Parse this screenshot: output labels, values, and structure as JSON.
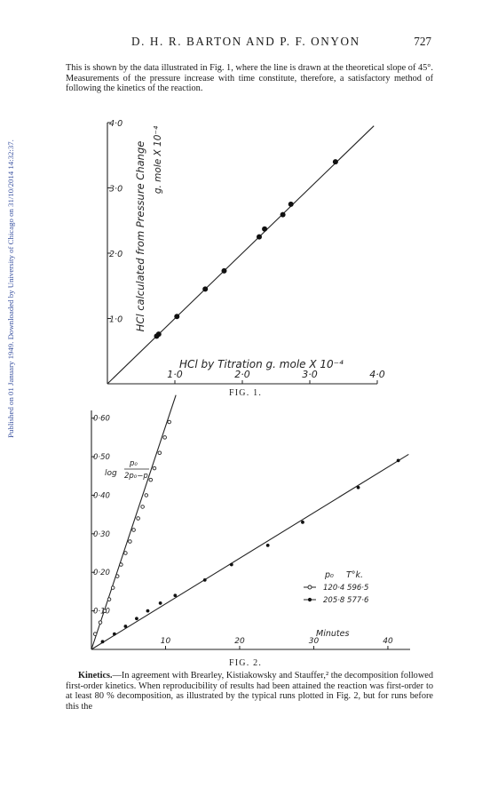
{
  "sidebar_text": "Published on 01 January 1949. Downloaded by University of Chicago on 31/10/2014 14:32:37.",
  "header": {
    "running_head": "D. H. R. BARTON AND P. F. ONYON",
    "page_number": "727"
  },
  "paragraph_1": "This is shown by the data illustrated in Fig. 1, where the line is drawn at the theoretical slope of 45°. Measurements of the pressure increase with time constitute, therefore, a satisfactory method of following the kinetics of the reaction.",
  "paragraph_2": {
    "heading": "Kinetics.",
    "text": "—In agreement with Brearley, Kistiakowsky and Stauffer,² the decomposition followed first-order kinetics. When reproducibility of results had been attained the reaction was first-order to at least 80 % decomposition, as illustrated by the typical runs plotted in Fig. 2, but for runs before this the"
  },
  "figure_1": {
    "caption": "FIG. 1."
  },
  "figure_2": {
    "caption": "FIG. 2."
  },
  "chart_data": [
    {
      "type": "scatter",
      "figure": "FIG. 1.",
      "xlabel": "HCl by Titration g. mole X 10⁻⁴",
      "ylabel": "HCl calculated from Pressure Change",
      "ylabel_units": "g. mole X 10⁻⁴",
      "x_ticks": [
        "1·0",
        "2·0",
        "3·0",
        "4·0"
      ],
      "y_ticks": [
        "1·0",
        "2·0",
        "3·0",
        "4·0"
      ],
      "xlim": [
        0,
        4.0
      ],
      "ylim": [
        0,
        4.0
      ],
      "grid": false,
      "series": [
        {
          "x": [
            0.73,
            0.76,
            1.03,
            1.45,
            1.73,
            2.25,
            2.33,
            2.6,
            2.72,
            3.38
          ],
          "y": [
            0.73,
            0.76,
            1.03,
            1.45,
            1.73,
            2.25,
            2.37,
            2.59,
            2.75,
            3.4
          ]
        }
      ],
      "reference_line": {
        "slope": 1,
        "intercept": 0
      }
    },
    {
      "type": "line",
      "figure": "FIG. 2.",
      "xlabel": "Minutes",
      "ylabel": "log p₀ / (2p₀ − p)",
      "ylabel_num": "p₀",
      "ylabel_den": "2p₀−p",
      "x_ticks": [
        "10",
        "20",
        "30",
        "40"
      ],
      "y_ticks": [
        "0·10",
        "0·20",
        "0·30",
        "0·40",
        "0·50",
        "0·60"
      ],
      "xlim": [
        0,
        43
      ],
      "ylim": [
        0,
        0.62
      ],
      "grid": false,
      "legend_position": "bottom-right",
      "legend_header": {
        "p0": "p₀",
        "temp": "T°k."
      },
      "series": [
        {
          "name": "120·4  596·5",
          "marker": "open",
          "x": [
            0.5,
            1.2,
            1.8,
            2.4,
            2.9,
            3.5,
            4.0,
            4.6,
            5.2,
            5.7,
            6.3,
            6.9,
            7.4,
            8.0,
            8.5,
            9.2,
            9.9,
            10.5
          ],
          "y": [
            0.04,
            0.07,
            0.1,
            0.13,
            0.16,
            0.19,
            0.22,
            0.25,
            0.28,
            0.31,
            0.34,
            0.37,
            0.4,
            0.44,
            0.47,
            0.51,
            0.55,
            0.59
          ]
        },
        {
          "name": "205·8  577·6",
          "marker": "filled",
          "x": [
            1.5,
            3.1,
            4.6,
            6.1,
            7.6,
            9.3,
            11.3,
            15.3,
            18.9,
            23.8,
            28.5,
            36.0,
            41.4
          ],
          "y": [
            0.02,
            0.04,
            0.06,
            0.08,
            0.1,
            0.12,
            0.14,
            0.18,
            0.22,
            0.27,
            0.33,
            0.42,
            0.49
          ]
        }
      ]
    }
  ]
}
